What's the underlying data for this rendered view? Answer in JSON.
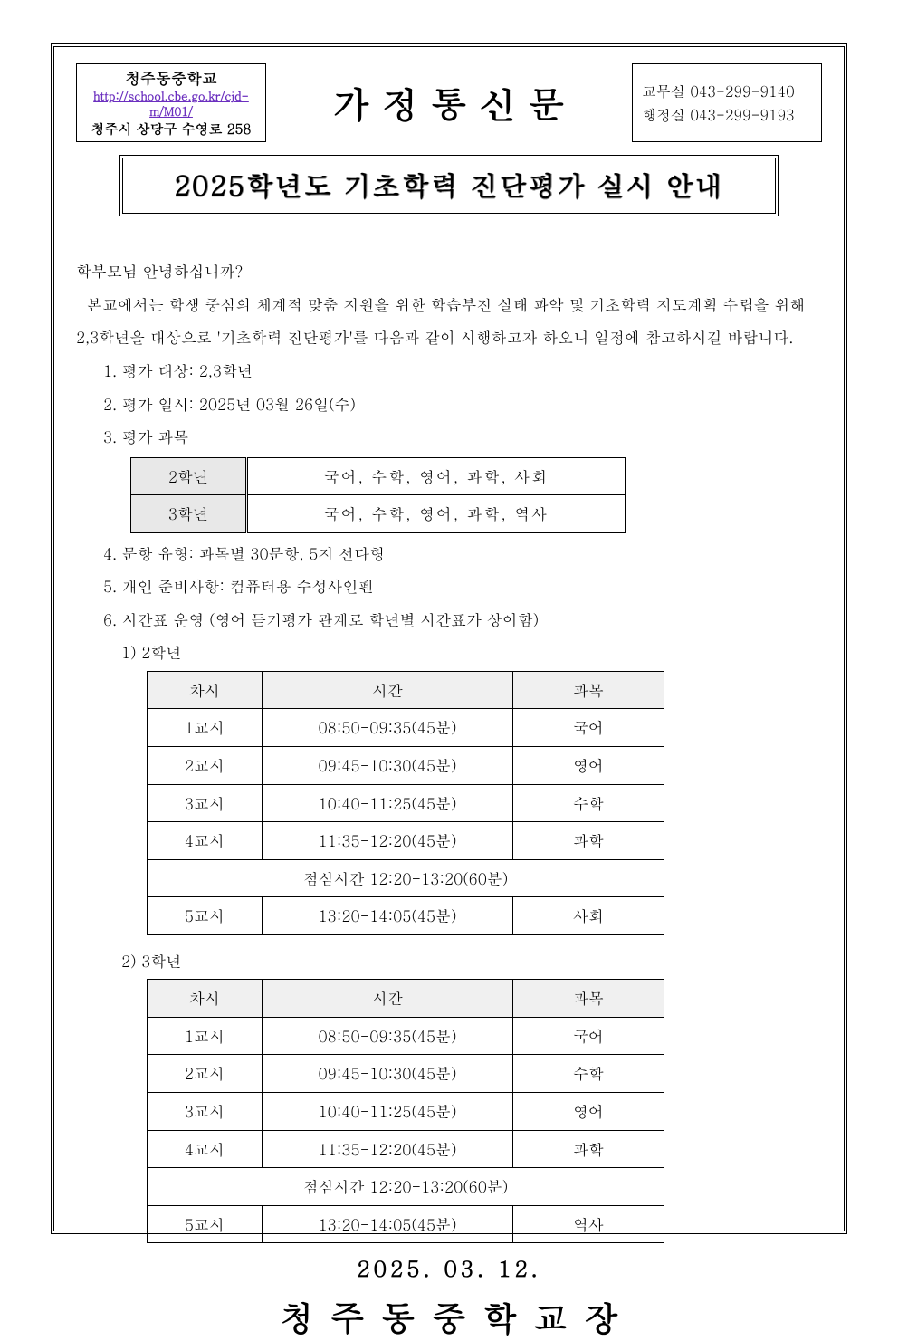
{
  "header": {
    "school_name": "청주동중학교",
    "school_url": "http://school.cbe.go.kr/cjd-m/M01/",
    "school_addr": "청주시 상당구 수영로 258",
    "doc_type": "가정통신문",
    "contact_office_label": "교무실",
    "contact_office_phone": "043-299-9140",
    "contact_admin_label": "행정실",
    "contact_admin_phone": "043-299-9193"
  },
  "title": "2025학년도 기초학력 진단평가 실시 안내",
  "body": {
    "greeting": "학부모님 안녕하십니까?",
    "para": "본교에서는 학생 중심의 체계적 맞춤 지원을 위한 학습부진 실태 파악 및 기초학력 지도계획 수립을 위해 2,3학년을 대상으로 '기초학력 진단평가'를 다음과 같이 시행하고자 하오니 일정에 참고하시길 바랍니다.",
    "item1": "1. 평가 대상: 2,3학년",
    "item2": "2. 평가 일시: 2025년 03월 26일(수)",
    "item3": "3. 평가 과목",
    "subjects": {
      "rows": [
        {
          "grade": "2학년",
          "subjects": "국어, 수학, 영어, 과학, 사회"
        },
        {
          "grade": "3학년",
          "subjects": "국어, 수학, 영어, 과학, 역사"
        }
      ]
    },
    "item4": "4. 문항 유형: 과목별 30문항, 5지 선다형",
    "item5": "5. 개인 준비사항: 컴퓨터용 수성사인펜",
    "item6": "6. 시간표 운영 (영어 듣기평가 관계로 학년별 시간표가 상이함)",
    "sched_label_2": "1) 2학년",
    "sched_label_3": "2) 3학년",
    "sched_headers": {
      "period": "차시",
      "time": "시간",
      "subject": "과목"
    },
    "lunch_text": "점심시간 12:20-13:20(60분)",
    "schedule_2": [
      {
        "period": "1교시",
        "time": "08:50-09:35(45분)",
        "subject": "국어"
      },
      {
        "period": "2교시",
        "time": "09:45-10:30(45분)",
        "subject": "영어"
      },
      {
        "period": "3교시",
        "time": "10:40-11:25(45분)",
        "subject": "수학"
      },
      {
        "period": "4교시",
        "time": "11:35-12:20(45분)",
        "subject": "과학"
      }
    ],
    "schedule_2_after": [
      {
        "period": "5교시",
        "time": "13:20-14:05(45분)",
        "subject": "사회"
      }
    ],
    "schedule_3": [
      {
        "period": "1교시",
        "time": "08:50-09:35(45분)",
        "subject": "국어"
      },
      {
        "period": "2교시",
        "time": "09:45-10:30(45분)",
        "subject": "수학"
      },
      {
        "period": "3교시",
        "time": "10:40-11:25(45분)",
        "subject": "영어"
      },
      {
        "period": "4교시",
        "time": "11:35-12:20(45분)",
        "subject": "과학"
      }
    ],
    "schedule_3_after": [
      {
        "period": "5교시",
        "time": "13:20-14:05(45분)",
        "subject": "역사"
      }
    ]
  },
  "footer": {
    "date": "2025. 03. 12.",
    "sign": "청주동중학교장"
  },
  "colors": {
    "url_color": "#6b2fbf",
    "table_header_bg": "#e8e8e8",
    "border": "#000000",
    "background": "#ffffff"
  }
}
